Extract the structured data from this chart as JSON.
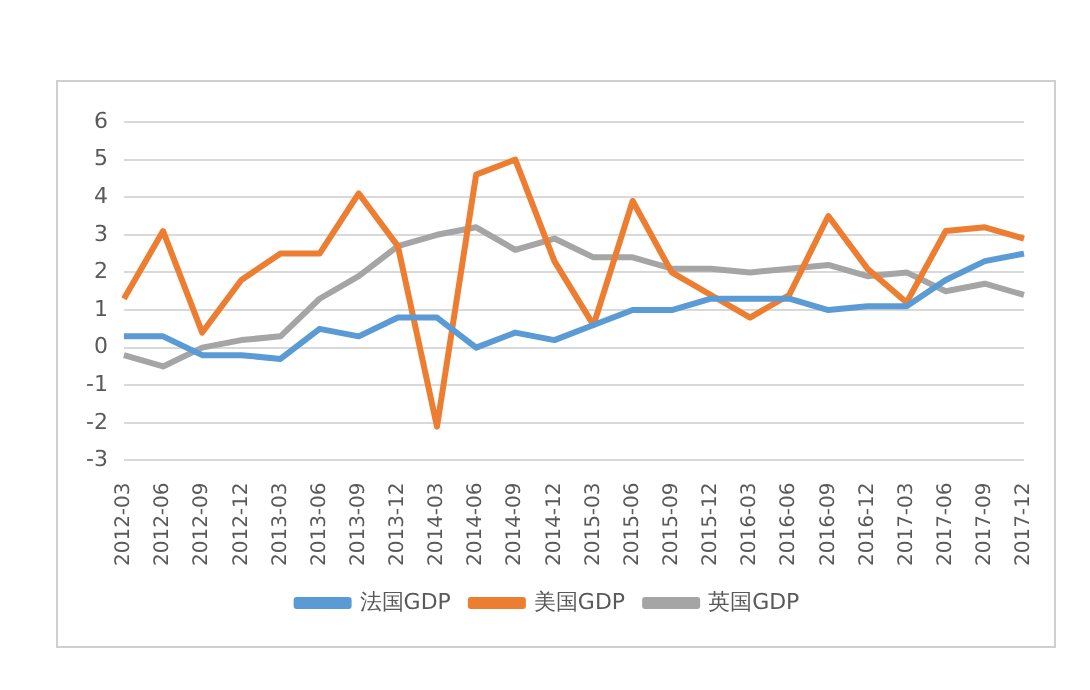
{
  "chart_data": {
    "type": "line",
    "categories": [
      "2012-03",
      "2012-06",
      "2012-09",
      "2012-12",
      "2013-03",
      "2013-06",
      "2013-09",
      "2013-12",
      "2014-03",
      "2014-06",
      "2014-09",
      "2014-12",
      "2015-03",
      "2015-06",
      "2015-09",
      "2015-12",
      "2016-03",
      "2016-06",
      "2016-09",
      "2016-12",
      "2017-03",
      "2017-06",
      "2017-09",
      "2017-12"
    ],
    "series": [
      {
        "name": "法国GDP",
        "color": "#5b9bd5",
        "values": [
          0.3,
          0.3,
          -0.2,
          -0.2,
          -0.3,
          0.5,
          0.3,
          0.8,
          0.8,
          0.0,
          0.4,
          0.2,
          0.6,
          1.0,
          1.0,
          1.3,
          1.3,
          1.3,
          1.0,
          1.1,
          1.1,
          1.8,
          2.3,
          2.5
        ]
      },
      {
        "name": "美国GDP",
        "color": "#ed7d31",
        "values": [
          1.3,
          3.1,
          0.4,
          1.8,
          2.5,
          2.5,
          4.1,
          2.7,
          -2.1,
          4.6,
          5.0,
          2.3,
          0.6,
          3.9,
          2.0,
          1.4,
          0.8,
          1.4,
          3.5,
          2.1,
          1.2,
          3.1,
          3.2,
          2.9
        ]
      },
      {
        "name": "英国GDP",
        "color": "#a5a5a5",
        "values": [
          -0.2,
          -0.5,
          0.0,
          0.2,
          0.3,
          1.3,
          1.9,
          2.7,
          3.0,
          3.2,
          2.6,
          2.9,
          2.4,
          2.4,
          2.1,
          2.1,
          2.0,
          2.1,
          2.2,
          1.9,
          2.0,
          1.5,
          1.7,
          1.4
        ]
      }
    ],
    "ylim": [
      -3,
      6
    ],
    "yticks": [
      -3,
      -2,
      -1,
      0,
      1,
      2,
      3,
      4,
      5,
      6
    ],
    "grid": "y",
    "legend": "bottom",
    "marker": "none",
    "line_style": "solid"
  }
}
